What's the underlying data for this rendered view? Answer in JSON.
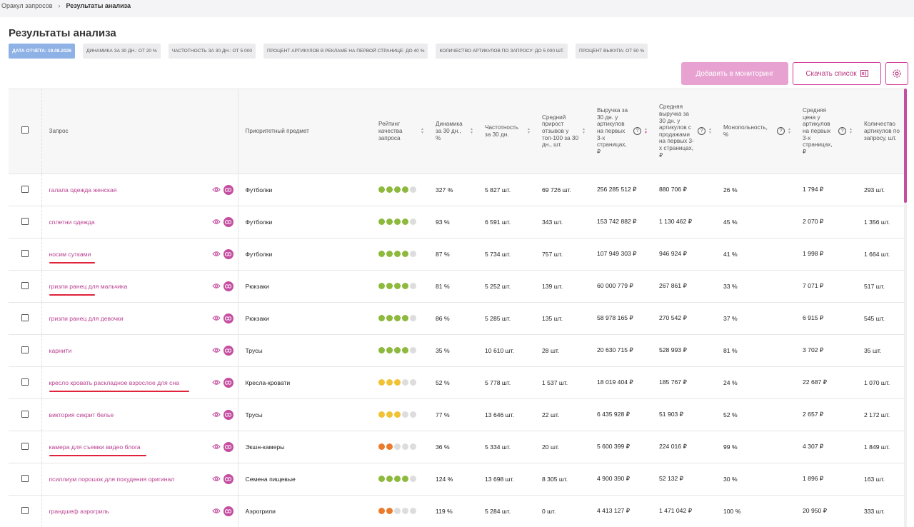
{
  "breadcrumb": {
    "parent": "Оракул запросов",
    "current": "Результаты анализа"
  },
  "page_title": "Результаты анализа",
  "chips": [
    {
      "label": "ДАТА ОТЧЁТА: 19.08.2026",
      "active": true
    },
    {
      "label": "ДИНАМИКА ЗА 30 ДН.: ОТ 20 %"
    },
    {
      "label": "ЧАСТОТНОСТЬ ЗА 30 ДН.: ОТ 5 000"
    },
    {
      "label": "ПРОЦЕНТ АРТИКУЛОВ В РЕКЛАМЕ НА ПЕРВОЙ СТРАНИЦЕ: ДО 40 %"
    },
    {
      "label": "КОЛИЧЕСТВО АРТИКУЛОВ ПО ЗАПРОСУ: ДО 5 000 ШТ."
    },
    {
      "label": "ПРОЦЕНТ ВЫКУПА: ОТ 50 %"
    }
  ],
  "actions": {
    "add_monitoring": "Добавить в мониторинг",
    "download": "Скачать список"
  },
  "columns": {
    "query": "Запрос",
    "subject": "Приоритетный предмет",
    "rating": "Рейтинг качества запроса",
    "dynamics": "Динамика за 30 дн., %",
    "frequency": "Частотность за 30 дн.",
    "reviews": "Средний прирост отзывов у топ-100 за 30 дн., шт.",
    "revenue": "Выручка за 30 дн. у артикулов на первых 3-х страницах, ₽",
    "avg_revenue": "Средняя выручка за 30 дн. у артикулов с продажами на первых 3-х страницах, ₽",
    "monopoly": "Монопольность, %",
    "avg_price": "Средняя цена у артикулов на первых 3-х страницах, ₽",
    "count": "Количество артикулов по запросу, шт."
  },
  "icons": {
    "eye": "eye-icon",
    "link": "link-icon",
    "settings": "gear-icon",
    "download": "excel-icon"
  },
  "colors": {
    "accent": "#c54ea0",
    "green": "#8db93c",
    "yellow": "#f0c234",
    "orange": "#ec7a2b",
    "underline": "#e0223a"
  },
  "rows": [
    {
      "query": "галала одежда женская",
      "subject": "Футболки",
      "rating": [
        "green",
        "green",
        "green",
        "green",
        "gray"
      ],
      "dynamics": "327 %",
      "frequency": "5 827 шт.",
      "reviews": "69 726 шт.",
      "revenue": "256 285 512 ₽",
      "avg_revenue": "880 706 ₽",
      "monopoly": "26 %",
      "avg_price": "1 794 ₽",
      "count": "293 шт.",
      "underlined": false
    },
    {
      "query": "сплетни одежда",
      "subject": "Футболки",
      "rating": [
        "green",
        "green",
        "green",
        "green",
        "gray"
      ],
      "dynamics": "93 %",
      "frequency": "6 591 шт.",
      "reviews": "343 шт.",
      "revenue": "153 742 882 ₽",
      "avg_revenue": "1 130 462 ₽",
      "monopoly": "45 %",
      "avg_price": "2 070 ₽",
      "count": "1 356 шт.",
      "underlined": false
    },
    {
      "query": "носим сутками",
      "subject": "Футболки",
      "rating": [
        "green",
        "green",
        "green",
        "green",
        "gray"
      ],
      "dynamics": "87 %",
      "frequency": "5 734 шт.",
      "reviews": "757 шт.",
      "revenue": "107 949 303 ₽",
      "avg_revenue": "946 924 ₽",
      "monopoly": "41 %",
      "avg_price": "1 998 ₽",
      "count": "1 664 шт.",
      "underlined": true
    },
    {
      "query": "гризли ранец для мальчика",
      "subject": "Рюкзаки",
      "rating": [
        "green",
        "green",
        "green",
        "green",
        "gray"
      ],
      "dynamics": "81 %",
      "frequency": "5 252 шт.",
      "reviews": "139 шт.",
      "revenue": "60 000 779 ₽",
      "avg_revenue": "267 861 ₽",
      "monopoly": "33 %",
      "avg_price": "7 071 ₽",
      "count": "517 шт.",
      "underlined": true
    },
    {
      "query": "гризли ранец для девочки",
      "subject": "Рюкзаки",
      "rating": [
        "green",
        "green",
        "green",
        "green",
        "gray"
      ],
      "dynamics": "86 %",
      "frequency": "5 285 шт.",
      "reviews": "135 шт.",
      "revenue": "58 978 165 ₽",
      "avg_revenue": "270 542 ₽",
      "monopoly": "37 %",
      "avg_price": "6 915 ₽",
      "count": "545 шт.",
      "underlined": false
    },
    {
      "query": "карнити",
      "subject": "Трусы",
      "rating": [
        "green",
        "green",
        "green",
        "green",
        "gray"
      ],
      "dynamics": "35 %",
      "frequency": "10 610 шт.",
      "reviews": "28 шт.",
      "revenue": "20 630 715 ₽",
      "avg_revenue": "528 993 ₽",
      "monopoly": "81 %",
      "avg_price": "3 702 ₽",
      "count": "35 шт.",
      "underlined": false
    },
    {
      "query": "кресло кровать раскладное взрослое для сна",
      "subject": "Кресла-кровати",
      "rating": [
        "yellow",
        "yellow",
        "yellow",
        "gray",
        "gray"
      ],
      "dynamics": "52 %",
      "frequency": "5 778 шт.",
      "reviews": "1 537 шт.",
      "revenue": "18 019 404 ₽",
      "avg_revenue": "185 767 ₽",
      "monopoly": "24 %",
      "avg_price": "22 687 ₽",
      "count": "1 070 шт.",
      "underlined": true
    },
    {
      "query": "виктория сикрит белье",
      "subject": "Трусы",
      "rating": [
        "yellow",
        "yellow",
        "yellow",
        "gray",
        "gray"
      ],
      "dynamics": "77 %",
      "frequency": "13 646 шт.",
      "reviews": "22 шт.",
      "revenue": "6 435 928 ₽",
      "avg_revenue": "51 903 ₽",
      "monopoly": "52 %",
      "avg_price": "2 657 ₽",
      "count": "2 172 шт.",
      "underlined": false
    },
    {
      "query": "камера для съемки видео блога",
      "subject": "Экшн-камеры",
      "rating": [
        "orange",
        "orange",
        "gray",
        "gray",
        "gray"
      ],
      "dynamics": "36 %",
      "frequency": "5 334 шт.",
      "reviews": "20 шт.",
      "revenue": "5 600 399 ₽",
      "avg_revenue": "224 016 ₽",
      "monopoly": "99 %",
      "avg_price": "4 307 ₽",
      "count": "1 849 шт.",
      "underlined": true
    },
    {
      "query": "псиллиум порошок для похудения оригинал",
      "subject": "Семена пищевые",
      "rating": [
        "green",
        "green",
        "green",
        "green",
        "gray"
      ],
      "dynamics": "124 %",
      "frequency": "13 698 шт.",
      "reviews": "8 305 шт.",
      "revenue": "4 900 390 ₽",
      "avg_revenue": "52 132 ₽",
      "monopoly": "30 %",
      "avg_price": "1 896 ₽",
      "count": "163 шт.",
      "underlined": false
    },
    {
      "query": "грандшеф аэрогриль",
      "subject": "Аэрогрили",
      "rating": [
        "orange",
        "orange",
        "gray",
        "gray",
        "gray"
      ],
      "dynamics": "119 %",
      "frequency": "5 284 шт.",
      "reviews": "0 шт.",
      "revenue": "4 413 127 ₽",
      "avg_revenue": "1 471 042 ₽",
      "monopoly": "100 %",
      "avg_price": "20 950 ₽",
      "count": "333 шт.",
      "underlined": false
    }
  ]
}
